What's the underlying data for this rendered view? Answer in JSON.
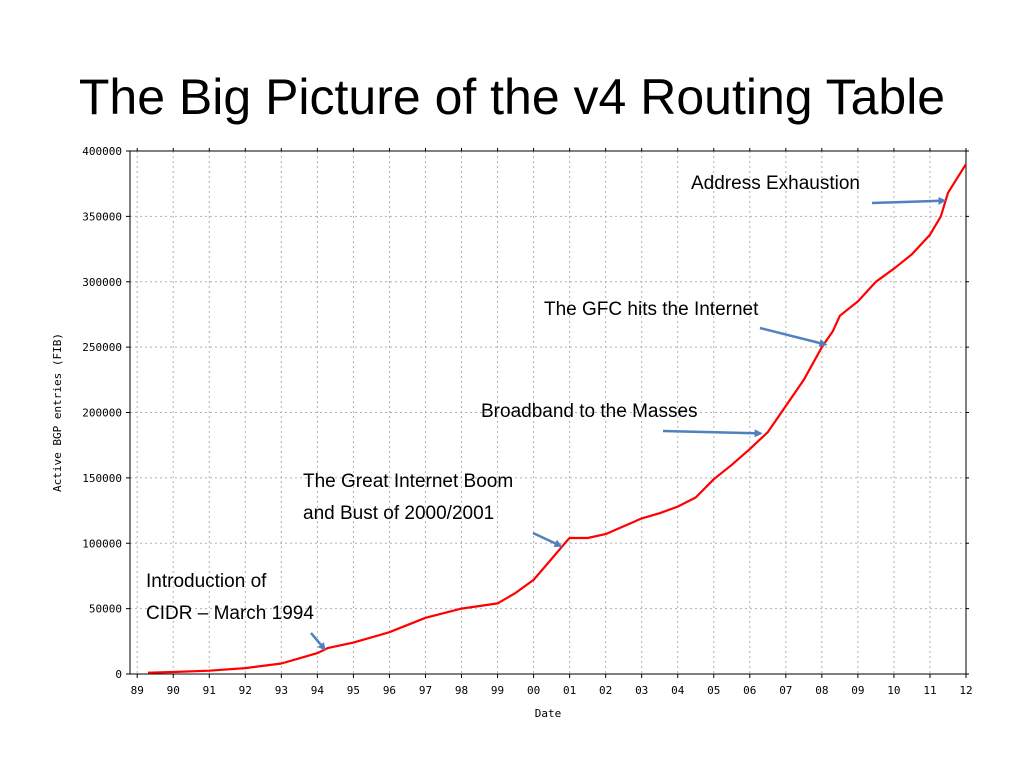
{
  "slide": {
    "title": "The Big Picture of the v4 Routing Table"
  },
  "colors": {
    "series": "#ff0000",
    "arrow": "#4f81bd",
    "grid": "#b0b0b0"
  },
  "chart_data": {
    "type": "line",
    "title": "",
    "xlabel": "Date",
    "ylabel": "Active BGP entries (FIB)",
    "xlim": [
      1988.8,
      2012.0
    ],
    "ylim": [
      0,
      400000
    ],
    "xticks": [
      "89",
      "90",
      "91",
      "92",
      "93",
      "94",
      "95",
      "96",
      "97",
      "98",
      "99",
      "00",
      "01",
      "02",
      "03",
      "04",
      "05",
      "06",
      "07",
      "08",
      "09",
      "10",
      "11",
      "12"
    ],
    "xtick_years": [
      1989,
      1990,
      1991,
      1992,
      1993,
      1994,
      1995,
      1996,
      1997,
      1998,
      1999,
      2000,
      2001,
      2002,
      2003,
      2004,
      2005,
      2006,
      2007,
      2008,
      2009,
      2010,
      2011,
      2012
    ],
    "yticks": [
      0,
      50000,
      100000,
      150000,
      200000,
      250000,
      300000,
      350000,
      400000
    ],
    "grid": true,
    "series": [
      {
        "x": [
          1989.3,
          1990.0,
          1991.0,
          1992.0,
          1993.0,
          1993.5,
          1994.0,
          1994.3,
          1995.0,
          1996.0,
          1997.0,
          1998.0,
          1999.0,
          1999.5,
          2000.0,
          2000.5,
          2000.9,
          2001.0,
          2001.5,
          2002.0,
          2002.5,
          2003.0,
          2003.5,
          2004.0,
          2004.5,
          2005.0,
          2005.5,
          2006.0,
          2006.5,
          2007.0,
          2007.5,
          2008.0,
          2008.3,
          2008.5,
          2009.0,
          2009.5,
          2010.0,
          2010.5,
          2011.0,
          2011.3,
          2011.5,
          2012.0
        ],
        "y": [
          1000,
          1500,
          2500,
          4500,
          8000,
          12000,
          16000,
          20000,
          24000,
          32000,
          43000,
          50000,
          54000,
          62000,
          72000,
          88000,
          101000,
          104000,
          104000,
          107000,
          113000,
          119000,
          123000,
          128000,
          135000,
          149000,
          160000,
          172000,
          185000,
          205000,
          225000,
          250000,
          262000,
          274000,
          285000,
          300000,
          310000,
          321000,
          336000,
          350000,
          368000,
          390000
        ]
      }
    ],
    "annotations": [
      {
        "text": [
          "Address Exhaustion"
        ],
        "x": 2011.4,
        "y": 362000
      },
      {
        "text": [
          "The GFC hits the Internet"
        ],
        "x": 2008.1,
        "y": 252000
      },
      {
        "text": [
          "Broadband to the Masses"
        ],
        "x": 2006.3,
        "y": 184000
      },
      {
        "text": [
          "The Great Internet Boom",
          "and Bust of 2000/2001"
        ],
        "x": 2000.75,
        "y": 98000
      },
      {
        "text": [
          "Introduction of",
          "CIDR – March 1994"
        ],
        "x": 1994.2,
        "y": 19000
      }
    ]
  }
}
